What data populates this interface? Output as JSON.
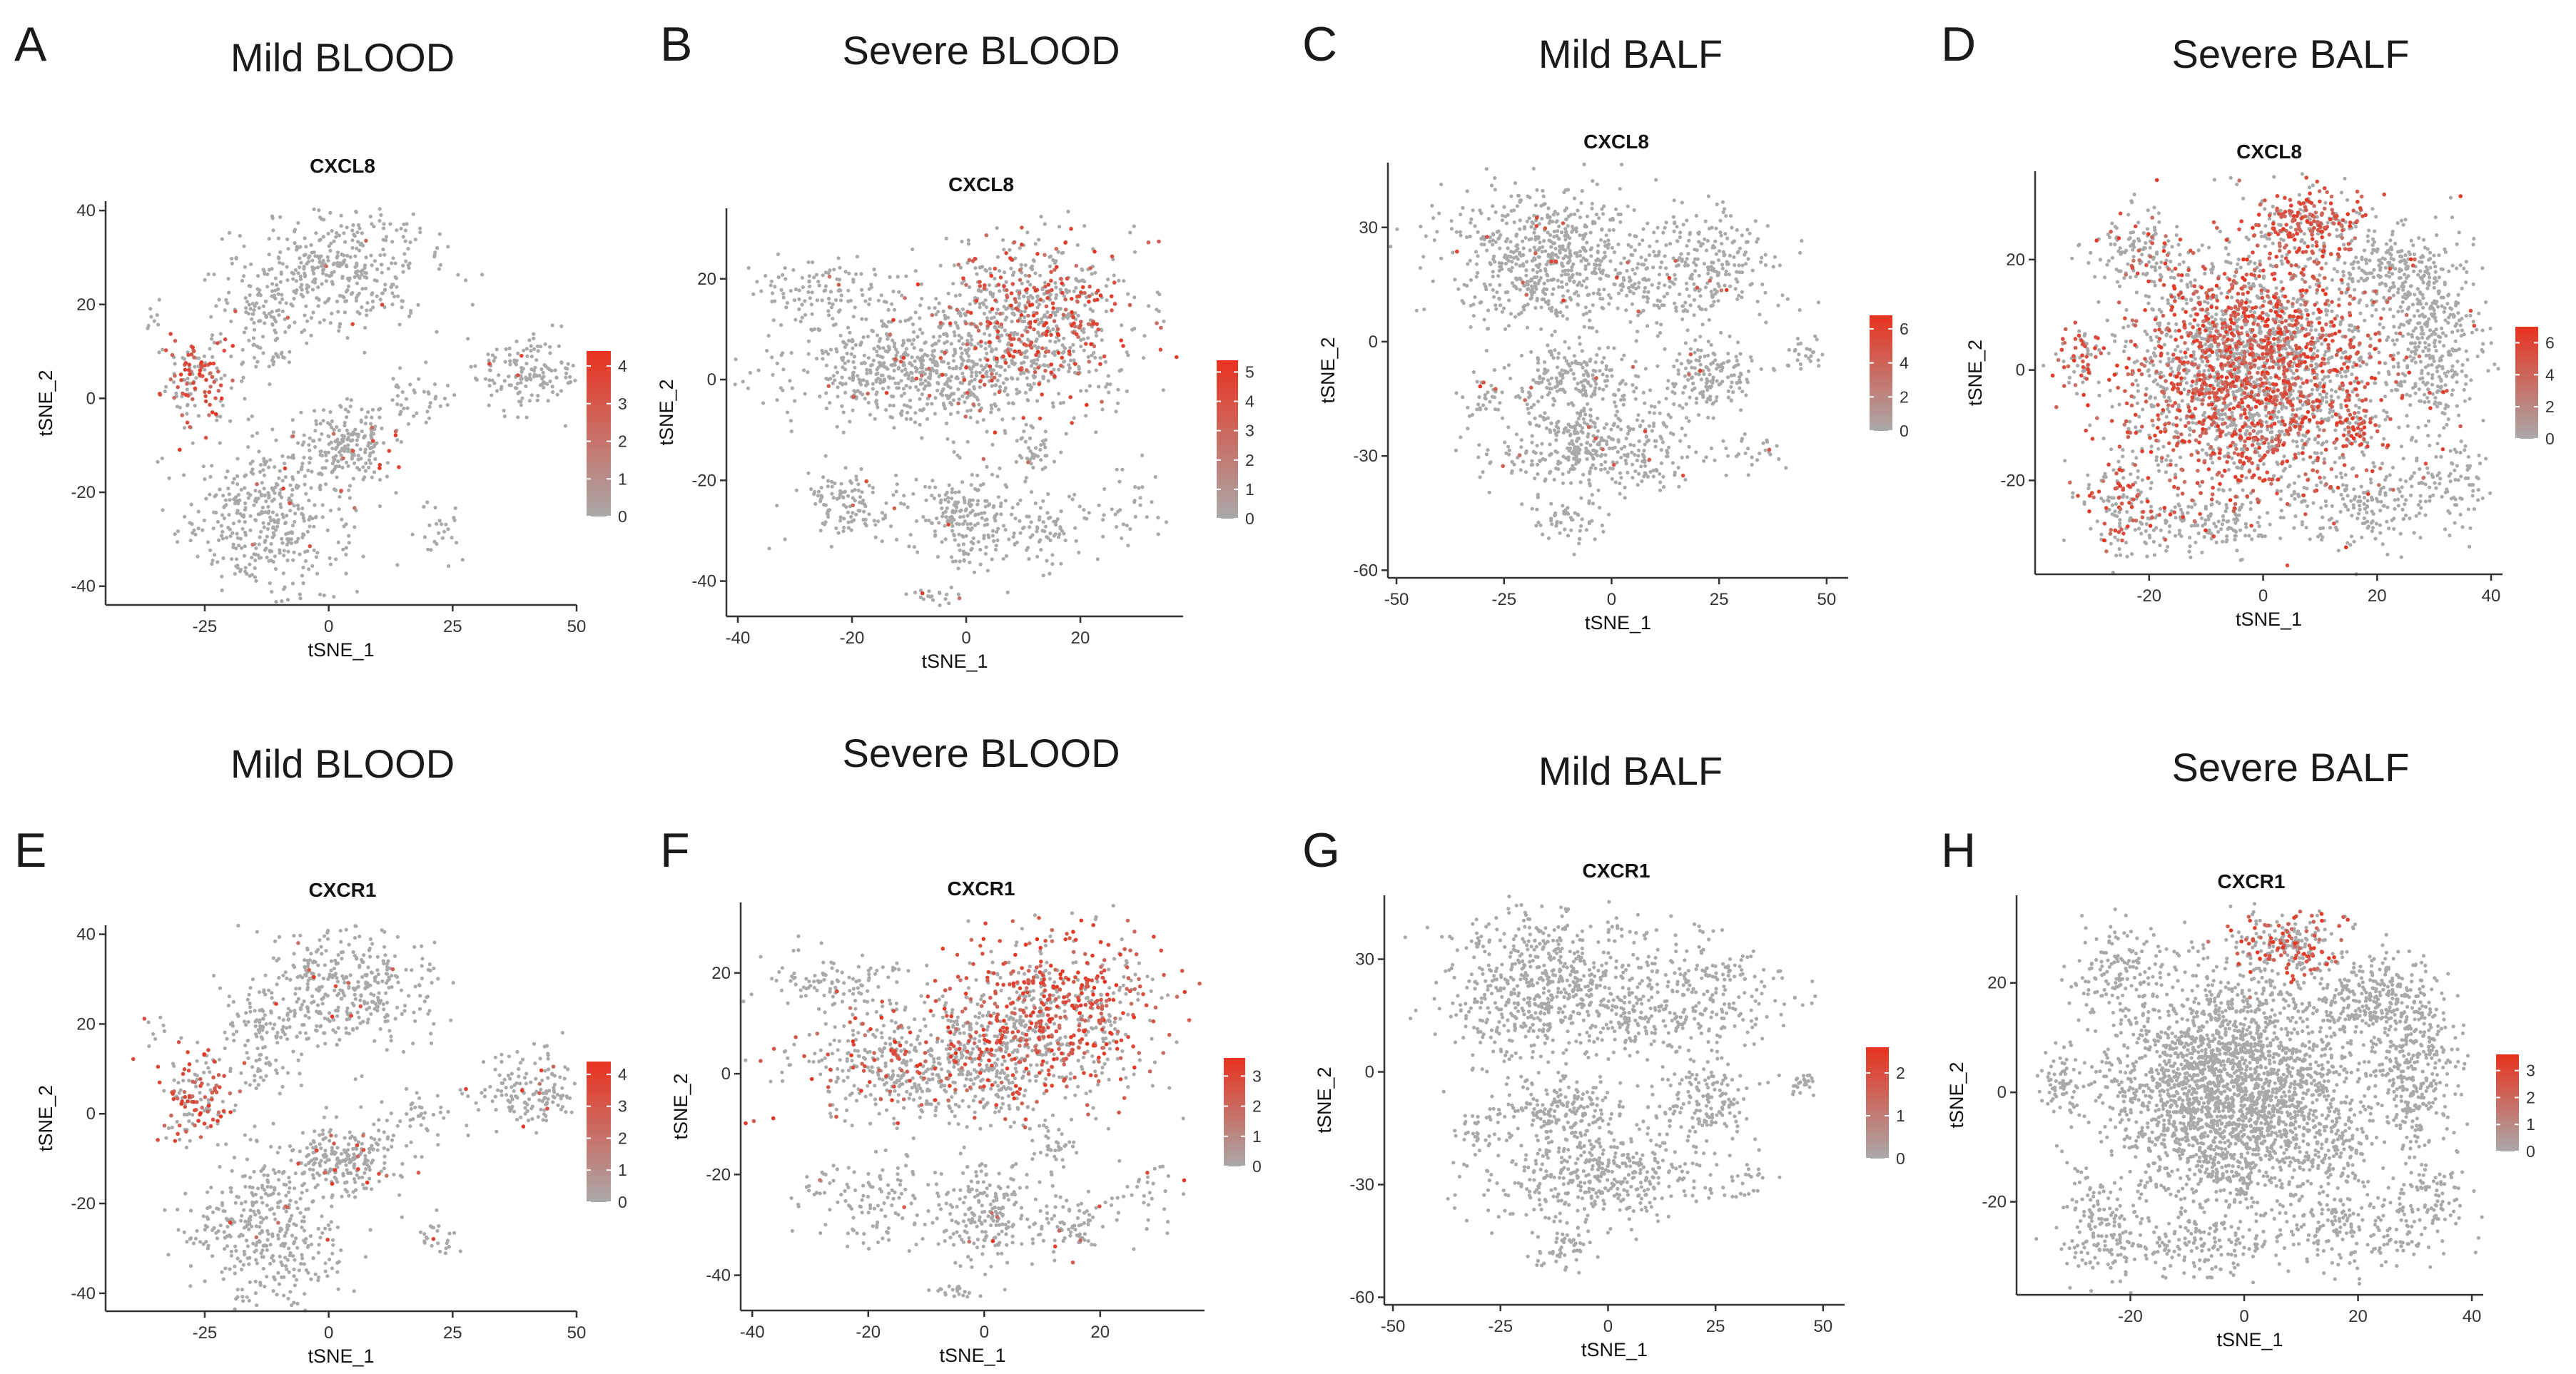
{
  "figure": {
    "description_colors": {
      "point_low": "#a9a9a9",
      "point_high": "#e8321e",
      "axis": "#333333",
      "text": "#1a1a1a"
    }
  },
  "chart_data": [
    {
      "type": "scatter",
      "panel": "A",
      "condition": "Mild BLOOD",
      "gene": "CXCL8",
      "xlabel": "tSNE_1",
      "ylabel": "tSNE_2",
      "xlim": [
        -45,
        50
      ],
      "ylim": [
        -44,
        42
      ],
      "xticks": [
        -25,
        0,
        25,
        50
      ],
      "yticks": [
        -40,
        -20,
        0,
        20,
        40
      ],
      "legend": {
        "ticks": [
          0,
          1,
          2,
          3,
          4
        ],
        "max": 4.4
      },
      "clusters": [
        {
          "cx": 3,
          "cy": 28,
          "sx": 9,
          "sy": 7,
          "n": 380,
          "expr": 0.02
        },
        {
          "cx": -13,
          "cy": 20,
          "sx": 5,
          "sy": 4,
          "n": 90,
          "expr": 0.02
        },
        {
          "cx": -12,
          "cy": 9,
          "sx": 3,
          "sy": 2,
          "n": 30,
          "expr": 0.02
        },
        {
          "cx": -26,
          "cy": 4,
          "sx": 4,
          "sy": 5,
          "n": 140,
          "expr": 0.55
        },
        {
          "cx": 4,
          "cy": -10,
          "sx": 5,
          "sy": 4,
          "n": 200,
          "expr": 0.08
        },
        {
          "cx": 40,
          "cy": 5,
          "sx": 5,
          "sy": 4,
          "n": 150,
          "expr": 0.02
        },
        {
          "cx": 18,
          "cy": 0,
          "sx": 4,
          "sy": 3,
          "n": 40,
          "expr": 0.02
        },
        {
          "cx": -12,
          "cy": -25,
          "sx": 8,
          "sy": 9,
          "n": 420,
          "expr": 0.02
        },
        {
          "cx": 22,
          "cy": -28,
          "sx": 2,
          "sy": 3,
          "n": 25,
          "expr": 0.02
        },
        {
          "cx": -35,
          "cy": 18,
          "sx": 1,
          "sy": 2,
          "n": 8,
          "expr": 0.02
        }
      ]
    },
    {
      "type": "scatter",
      "panel": "B",
      "condition": "Severe BLOOD",
      "gene": "CXCL8",
      "xlabel": "tSNE_1",
      "ylabel": "tSNE_2",
      "xlim": [
        -42,
        38
      ],
      "ylim": [
        -47,
        34
      ],
      "xticks": [
        -40,
        -20,
        0,
        20
      ],
      "yticks": [
        -40,
        -20,
        0,
        20
      ],
      "legend": {
        "ticks": [
          0,
          1,
          2,
          3,
          4,
          5
        ],
        "max": 5.4
      },
      "clusters": [
        {
          "cx": 12,
          "cy": 12,
          "sx": 9,
          "sy": 8,
          "n": 700,
          "expr": 0.35
        },
        {
          "cx": -8,
          "cy": 2,
          "sx": 12,
          "sy": 6,
          "n": 700,
          "expr": 0.04
        },
        {
          "cx": -25,
          "cy": 18,
          "sx": 6,
          "sy": 3,
          "n": 110,
          "expr": 0.02
        },
        {
          "cx": -20,
          "cy": -25,
          "sx": 5,
          "sy": 4,
          "n": 120,
          "expr": 0.02
        },
        {
          "cx": 0,
          "cy": -28,
          "sx": 4,
          "sy": 5,
          "n": 200,
          "expr": 0.02
        },
        {
          "cx": 15,
          "cy": -30,
          "sx": 4,
          "sy": 3,
          "n": 80,
          "expr": 0.02
        },
        {
          "cx": 12,
          "cy": -15,
          "sx": 2,
          "sy": 3,
          "n": 40,
          "expr": 0.02
        },
        {
          "cx": -5,
          "cy": -43,
          "sx": 2,
          "sy": 1,
          "n": 20,
          "expr": 0.02
        },
        {
          "cx": 28,
          "cy": -25,
          "sx": 3,
          "sy": 4,
          "n": 30,
          "expr": 0.02
        }
      ]
    },
    {
      "type": "scatter",
      "panel": "C",
      "condition": "Mild BALF",
      "gene": "CXCL8",
      "xlabel": "tSNE_1",
      "ylabel": "tSNE_2",
      "xlim": [
        -52,
        55
      ],
      "ylim": [
        -62,
        47
      ],
      "xticks": [
        -50,
        -25,
        0,
        25,
        50
      ],
      "yticks": [
        -60,
        -30,
        0,
        30
      ],
      "legend": {
        "ticks": [
          0,
          2,
          4,
          6
        ],
        "max": 6.8
      },
      "clusters": [
        {
          "cx": -15,
          "cy": 22,
          "sx": 12,
          "sy": 10,
          "n": 650,
          "expr": 0.02
        },
        {
          "cx": 22,
          "cy": 20,
          "sx": 9,
          "sy": 8,
          "n": 250,
          "expr": 0.02
        },
        {
          "cx": 5,
          "cy": 15,
          "sx": 4,
          "sy": 5,
          "n": 60,
          "expr": 0.02
        },
        {
          "cx": -10,
          "cy": -10,
          "sx": 8,
          "sy": 4,
          "n": 180,
          "expr": 0.02
        },
        {
          "cx": 22,
          "cy": -8,
          "sx": 6,
          "sy": 5,
          "n": 150,
          "expr": 0.02
        },
        {
          "cx": -3,
          "cy": -28,
          "sx": 13,
          "sy": 6,
          "n": 420,
          "expr": 0.02
        },
        {
          "cx": -30,
          "cy": -15,
          "sx": 3,
          "sy": 3,
          "n": 30,
          "expr": 0.02
        },
        {
          "cx": -10,
          "cy": -48,
          "sx": 4,
          "sy": 3,
          "n": 50,
          "expr": 0.02
        },
        {
          "cx": 45,
          "cy": -3,
          "sx": 2,
          "sy": 2,
          "n": 25,
          "expr": 0.02
        },
        {
          "cx": 33,
          "cy": -30,
          "sx": 3,
          "sy": 3,
          "n": 20,
          "expr": 0.02
        }
      ]
    },
    {
      "type": "scatter",
      "panel": "D",
      "condition": "Severe BALF",
      "gene": "CXCL8",
      "xlabel": "tSNE_1",
      "ylabel": "tSNE_2",
      "xlim": [
        -40,
        42
      ],
      "ylim": [
        -37,
        36
      ],
      "xticks": [
        -20,
        0,
        20,
        40
      ],
      "yticks": [
        -20,
        0,
        20
      ],
      "legend": {
        "ticks": [
          0,
          2,
          4,
          6
        ],
        "max": 7
      },
      "clusters": [
        {
          "cx": -2,
          "cy": 0,
          "sx": 11,
          "sy": 11,
          "n": 2600,
          "expr": 0.45
        },
        {
          "cx": 8,
          "cy": 27,
          "sx": 5,
          "sy": 3,
          "n": 220,
          "expr": 0.65
        },
        {
          "cx": 22,
          "cy": 18,
          "sx": 5,
          "sy": 4,
          "n": 220,
          "expr": 0.02
        },
        {
          "cx": 30,
          "cy": 5,
          "sx": 4,
          "sy": 8,
          "n": 350,
          "expr": 0.02
        },
        {
          "cx": 17,
          "cy": -10,
          "sx": 2,
          "sy": 3,
          "n": 60,
          "expr": 0.7
        },
        {
          "cx": -32,
          "cy": 2,
          "sx": 2,
          "sy": 3,
          "n": 60,
          "expr": 0.5
        },
        {
          "cx": -25,
          "cy": -25,
          "sx": 4,
          "sy": 5,
          "n": 150,
          "expr": 0.35
        },
        {
          "cx": -8,
          "cy": -28,
          "sx": 6,
          "sy": 3,
          "n": 140,
          "expr": 0.05
        },
        {
          "cx": 18,
          "cy": -25,
          "sx": 6,
          "sy": 4,
          "n": 160,
          "expr": 0.02
        },
        {
          "cx": 32,
          "cy": -20,
          "sx": 4,
          "sy": 4,
          "n": 100,
          "expr": 0.02
        },
        {
          "cx": -22,
          "cy": 22,
          "sx": 4,
          "sy": 4,
          "n": 120,
          "expr": 0.15
        }
      ]
    },
    {
      "type": "scatter",
      "panel": "E",
      "condition": "Mild BLOOD",
      "gene": "CXCR1",
      "xlabel": "tSNE_1",
      "ylabel": "tSNE_2",
      "xlim": [
        -45,
        50
      ],
      "ylim": [
        -44,
        42
      ],
      "xticks": [
        -25,
        0,
        25,
        50
      ],
      "yticks": [
        -40,
        -20,
        0,
        20,
        40
      ],
      "legend": {
        "ticks": [
          0,
          1,
          2,
          3,
          4
        ],
        "max": 4.4
      },
      "clusters": [
        {
          "cx": 3,
          "cy": 28,
          "sx": 9,
          "sy": 7,
          "n": 380,
          "expr": 0.02
        },
        {
          "cx": -13,
          "cy": 20,
          "sx": 5,
          "sy": 4,
          "n": 90,
          "expr": 0.02
        },
        {
          "cx": -12,
          "cy": 9,
          "sx": 3,
          "sy": 2,
          "n": 30,
          "expr": 0.02
        },
        {
          "cx": -26,
          "cy": 4,
          "sx": 4,
          "sy": 5,
          "n": 140,
          "expr": 0.5
        },
        {
          "cx": 4,
          "cy": -10,
          "sx": 5,
          "sy": 4,
          "n": 200,
          "expr": 0.12
        },
        {
          "cx": 40,
          "cy": 5,
          "sx": 5,
          "sy": 4,
          "n": 150,
          "expr": 0.02
        },
        {
          "cx": 18,
          "cy": 0,
          "sx": 4,
          "sy": 3,
          "n": 40,
          "expr": 0.02
        },
        {
          "cx": -12,
          "cy": -25,
          "sx": 8,
          "sy": 9,
          "n": 420,
          "expr": 0.02
        },
        {
          "cx": 22,
          "cy": -28,
          "sx": 2,
          "sy": 3,
          "n": 25,
          "expr": 0.02
        },
        {
          "cx": -35,
          "cy": 18,
          "sx": 1,
          "sy": 2,
          "n": 8,
          "expr": 0.02
        }
      ]
    },
    {
      "type": "scatter",
      "panel": "F",
      "condition": "Severe BLOOD",
      "gene": "CXCR1",
      "xlabel": "tSNE_1",
      "ylabel": "tSNE_2",
      "xlim": [
        -42,
        38
      ],
      "ylim": [
        -47,
        34
      ],
      "xticks": [
        -40,
        -20,
        0,
        20
      ],
      "yticks": [
        -40,
        -20,
        0,
        20
      ],
      "legend": {
        "ticks": [
          0,
          1,
          2,
          3
        ],
        "max": 3.6
      },
      "clusters": [
        {
          "cx": 12,
          "cy": 12,
          "sx": 9,
          "sy": 8,
          "n": 700,
          "expr": 0.55
        },
        {
          "cx": -8,
          "cy": 2,
          "sx": 12,
          "sy": 6,
          "n": 700,
          "expr": 0.25
        },
        {
          "cx": -25,
          "cy": 18,
          "sx": 6,
          "sy": 3,
          "n": 110,
          "expr": 0.02
        },
        {
          "cx": -20,
          "cy": -25,
          "sx": 5,
          "sy": 4,
          "n": 120,
          "expr": 0.02
        },
        {
          "cx": 0,
          "cy": -28,
          "sx": 4,
          "sy": 5,
          "n": 200,
          "expr": 0.02
        },
        {
          "cx": 15,
          "cy": -30,
          "sx": 4,
          "sy": 3,
          "n": 80,
          "expr": 0.02
        },
        {
          "cx": 12,
          "cy": -15,
          "sx": 2,
          "sy": 3,
          "n": 40,
          "expr": 0.02
        },
        {
          "cx": -5,
          "cy": -43,
          "sx": 2,
          "sy": 1,
          "n": 20,
          "expr": 0.02
        },
        {
          "cx": 28,
          "cy": -25,
          "sx": 3,
          "sy": 4,
          "n": 30,
          "expr": 0.02
        }
      ]
    },
    {
      "type": "scatter",
      "panel": "G",
      "condition": "Mild BALF",
      "gene": "CXCR1",
      "xlabel": "tSNE_1",
      "ylabel": "tSNE_2",
      "xlim": [
        -52,
        55
      ],
      "ylim": [
        -62,
        47
      ],
      "xticks": [
        -50,
        -25,
        0,
        25,
        50
      ],
      "yticks": [
        -60,
        -30,
        0,
        30
      ],
      "legend": {
        "ticks": [
          0,
          1,
          2
        ],
        "max": 2.6
      },
      "clusters": [
        {
          "cx": -15,
          "cy": 22,
          "sx": 12,
          "sy": 10,
          "n": 650,
          "expr": 0.0
        },
        {
          "cx": 22,
          "cy": 20,
          "sx": 9,
          "sy": 8,
          "n": 250,
          "expr": 0.0
        },
        {
          "cx": 5,
          "cy": 15,
          "sx": 4,
          "sy": 5,
          "n": 60,
          "expr": 0.0
        },
        {
          "cx": -10,
          "cy": -10,
          "sx": 8,
          "sy": 4,
          "n": 180,
          "expr": 0.0
        },
        {
          "cx": 22,
          "cy": -8,
          "sx": 6,
          "sy": 5,
          "n": 150,
          "expr": 0.0
        },
        {
          "cx": -3,
          "cy": -28,
          "sx": 13,
          "sy": 6,
          "n": 420,
          "expr": 0.0
        },
        {
          "cx": -30,
          "cy": -15,
          "sx": 3,
          "sy": 3,
          "n": 30,
          "expr": 0.0
        },
        {
          "cx": -10,
          "cy": -48,
          "sx": 4,
          "sy": 3,
          "n": 50,
          "expr": 0.0
        },
        {
          "cx": 45,
          "cy": -3,
          "sx": 2,
          "sy": 2,
          "n": 25,
          "expr": 0.0
        },
        {
          "cx": 33,
          "cy": -30,
          "sx": 3,
          "sy": 3,
          "n": 20,
          "expr": 0.0
        }
      ]
    },
    {
      "type": "scatter",
      "panel": "H",
      "condition": "Severe BALF",
      "gene": "CXCR1",
      "xlabel": "tSNE_1",
      "ylabel": "tSNE_2",
      "xlim": [
        -40,
        42
      ],
      "ylim": [
        -37,
        36
      ],
      "xticks": [
        -20,
        0,
        20,
        40
      ],
      "yticks": [
        -20,
        0,
        20
      ],
      "legend": {
        "ticks": [
          0,
          1,
          2,
          3
        ],
        "max": 3.6
      },
      "clusters": [
        {
          "cx": -2,
          "cy": 0,
          "sx": 11,
          "sy": 11,
          "n": 2600,
          "expr": 0.0
        },
        {
          "cx": 8,
          "cy": 27,
          "sx": 5,
          "sy": 3,
          "n": 220,
          "expr": 0.45
        },
        {
          "cx": 22,
          "cy": 18,
          "sx": 5,
          "sy": 4,
          "n": 220,
          "expr": 0.0
        },
        {
          "cx": 30,
          "cy": 5,
          "sx": 4,
          "sy": 8,
          "n": 350,
          "expr": 0.0
        },
        {
          "cx": 17,
          "cy": -10,
          "sx": 2,
          "sy": 3,
          "n": 60,
          "expr": 0.0
        },
        {
          "cx": -32,
          "cy": 2,
          "sx": 2,
          "sy": 3,
          "n": 60,
          "expr": 0.0
        },
        {
          "cx": -25,
          "cy": -25,
          "sx": 4,
          "sy": 5,
          "n": 150,
          "expr": 0.0
        },
        {
          "cx": -8,
          "cy": -28,
          "sx": 6,
          "sy": 3,
          "n": 140,
          "expr": 0.0
        },
        {
          "cx": 18,
          "cy": -25,
          "sx": 6,
          "sy": 4,
          "n": 160,
          "expr": 0.0
        },
        {
          "cx": 32,
          "cy": -20,
          "sx": 4,
          "sy": 4,
          "n": 100,
          "expr": 0.0
        },
        {
          "cx": -22,
          "cy": 22,
          "sx": 4,
          "sy": 4,
          "n": 120,
          "expr": 0.0
        }
      ]
    }
  ]
}
